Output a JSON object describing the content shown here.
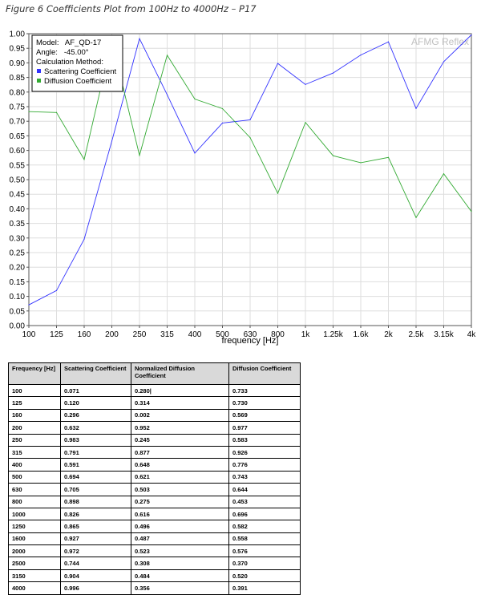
{
  "figure_title": "Figure 6 Coefficients Plot from 100Hz to 4000Hz – P17",
  "chart_data": {
    "type": "line",
    "watermark": "AFMG Reflex",
    "xlabel": "frequency [Hz]",
    "ylabel": "",
    "categories": [
      "100",
      "125",
      "160",
      "200",
      "250",
      "315",
      "400",
      "500",
      "630",
      "800",
      "1k",
      "1.25k",
      "1.6k",
      "2k",
      "2.5k",
      "3.15k",
      "4k"
    ],
    "ylim": [
      0,
      1
    ],
    "yticks": [
      "0.00",
      "0.05",
      "0.10",
      "0.15",
      "0.20",
      "0.25",
      "0.30",
      "0.35",
      "0.40",
      "0.45",
      "0.50",
      "0.55",
      "0.60",
      "0.65",
      "0.70",
      "0.75",
      "0.80",
      "0.85",
      "0.90",
      "0.95",
      "1.00"
    ],
    "grid": true,
    "legend": {
      "placement": "top-left",
      "model_line": "Model:   AF_QD-17",
      "angle_line": "Angle:   -45.00°",
      "method_line": "Calculation Method:"
    },
    "series": [
      {
        "name": "Scattering Coefficient",
        "color": "#3333ff",
        "values": [
          0.071,
          0.12,
          0.296,
          0.632,
          0.983,
          0.791,
          0.591,
          0.694,
          0.705,
          0.898,
          0.826,
          0.865,
          0.927,
          0.972,
          0.744,
          0.904,
          0.996
        ]
      },
      {
        "name": "Diffusion Coefficient",
        "color": "#33aa33",
        "values": [
          0.733,
          0.73,
          0.569,
          0.977,
          0.583,
          0.926,
          0.776,
          0.743,
          0.644,
          0.453,
          0.696,
          0.582,
          0.558,
          0.576,
          0.37,
          0.52,
          0.391
        ]
      }
    ]
  },
  "table": {
    "headers": [
      "Frequency [Hz]",
      "Scattering Coefficient",
      "Normalized Diffusion Coefficient",
      "Diffusion Coefficient"
    ],
    "rows": [
      [
        "100",
        "0.071",
        "0.280|",
        "0.733"
      ],
      [
        "125",
        "0.120",
        "0.314",
        "0.730"
      ],
      [
        "160",
        "0.296",
        "0.002",
        "0.569"
      ],
      [
        "200",
        "0.632",
        "0.952",
        "0.977"
      ],
      [
        "250",
        "0.983",
        "0.245",
        "0.583"
      ],
      [
        "315",
        "0.791",
        "0.877",
        "0.926"
      ],
      [
        "400",
        "0.591",
        "0.648",
        "0.776"
      ],
      [
        "500",
        "0.694",
        "0.621",
        "0.743"
      ],
      [
        "630",
        "0.705",
        "0.503",
        "0.644"
      ],
      [
        "800",
        "0.898",
        "0.275",
        "0.453"
      ],
      [
        "1000",
        "0.826",
        "0.616",
        "0.696"
      ],
      [
        "1250",
        "0.865",
        "0.496",
        "0.582"
      ],
      [
        "1600",
        "0.927",
        "0.487",
        "0.558"
      ],
      [
        "2000",
        "0.972",
        "0.523",
        "0.576"
      ],
      [
        "2500",
        "0.744",
        "0.308",
        "0.370"
      ],
      [
        "3150",
        "0.904",
        "0.484",
        "0.520"
      ],
      [
        "4000",
        "0.996",
        "0.356",
        "0.391"
      ]
    ]
  }
}
